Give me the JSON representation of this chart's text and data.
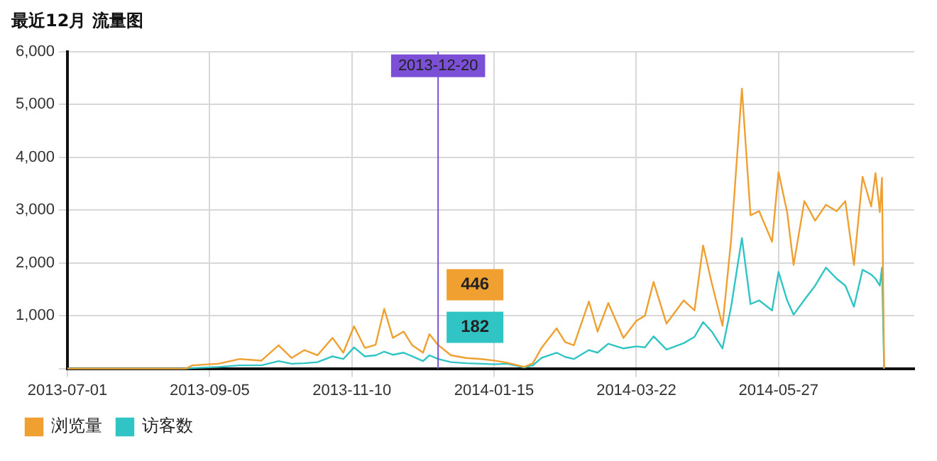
{
  "chart_data": {
    "type": "line",
    "title": "最近12月 流量图",
    "x": [
      "2013-07-01",
      "2013-08-25",
      "2013-08-28",
      "2013-09-09",
      "2013-09-19",
      "2013-09-29",
      "2013-10-07",
      "2013-10-13",
      "2013-10-19",
      "2013-10-25",
      "2013-11-01",
      "2013-11-06",
      "2013-11-11",
      "2013-11-16",
      "2013-11-21",
      "2013-11-25",
      "2013-11-29",
      "2013-12-04",
      "2013-12-08",
      "2013-12-13",
      "2013-12-16",
      "2013-12-20",
      "2013-12-26",
      "2014-01-02",
      "2014-01-09",
      "2014-01-15",
      "2014-01-21",
      "2014-01-29",
      "2014-02-02",
      "2014-02-06",
      "2014-02-13",
      "2014-02-17",
      "2014-02-21",
      "2014-02-28",
      "2014-03-04",
      "2014-03-09",
      "2014-03-16",
      "2014-03-22",
      "2014-03-26",
      "2014-03-30",
      "2014-04-05",
      "2014-04-13",
      "2014-04-18",
      "2014-04-22",
      "2014-04-26",
      "2014-05-01",
      "2014-05-05",
      "2014-05-10",
      "2014-05-14",
      "2014-05-18",
      "2014-05-24",
      "2014-05-27",
      "2014-05-31",
      "2014-06-03",
      "2014-06-08",
      "2014-06-13",
      "2014-06-18",
      "2014-06-23",
      "2014-06-27",
      "2014-07-01",
      "2014-07-05",
      "2014-07-09",
      "2014-07-11",
      "2014-07-13",
      "2014-07-14",
      "2014-07-15"
    ],
    "series": [
      {
        "name": "浏览量",
        "color": "#f0a030",
        "values": [
          0,
          0,
          60,
          90,
          180,
          150,
          440,
          200,
          350,
          250,
          580,
          300,
          800,
          390,
          450,
          1130,
          580,
          700,
          440,
          300,
          650,
          446,
          250,
          200,
          180,
          150,
          110,
          30,
          100,
          390,
          760,
          500,
          440,
          1270,
          700,
          1240,
          580,
          900,
          1000,
          1640,
          850,
          1290,
          1100,
          2330,
          1620,
          810,
          2440,
          5300,
          2900,
          2980,
          2400,
          3720,
          2960,
          1960,
          3170,
          2800,
          3100,
          2980,
          3170,
          1960,
          3630,
          3070,
          3700,
          2960,
          3610,
          0
        ]
      },
      {
        "name": "访客数",
        "color": "#30c4c4",
        "values": [
          0,
          0,
          10,
          30,
          60,
          60,
          140,
          90,
          100,
          120,
          230,
          180,
          400,
          230,
          250,
          320,
          260,
          300,
          230,
          140,
          250,
          182,
          120,
          100,
          90,
          80,
          90,
          20,
          60,
          200,
          300,
          220,
          180,
          350,
          300,
          470,
          380,
          420,
          400,
          610,
          360,
          480,
          600,
          880,
          700,
          380,
          1170,
          2470,
          1220,
          1290,
          1100,
          1830,
          1290,
          1020,
          1300,
          1570,
          1910,
          1700,
          1570,
          1170,
          1870,
          1780,
          1700,
          1570,
          1910,
          0
        ]
      }
    ],
    "xlim": [
      "2013-07-01",
      "2014-07-29"
    ],
    "xticks": [
      "2013-07-01",
      "2013-09-05",
      "2013-11-10",
      "2014-01-15",
      "2014-03-22",
      "2014-05-27"
    ],
    "ylim": [
      0,
      6000
    ],
    "yticks": [
      {
        "value": 0,
        "label": null
      },
      {
        "value": 1000,
        "label": "1,000"
      },
      {
        "value": 2000,
        "label": "2,000"
      },
      {
        "value": 3000,
        "label": "3,000"
      },
      {
        "value": 4000,
        "label": "4,000"
      },
      {
        "value": 5000,
        "label": "5,000"
      },
      {
        "value": 6000,
        "label": "6,000"
      }
    ],
    "ref_lines": [
      {
        "axis": "x",
        "value": "2013-12-20",
        "label": "2013-12-20",
        "color": "#7b4fd6"
      }
    ],
    "annotations": [
      "446",
      "182"
    ],
    "grid": true,
    "legend": "bottom",
    "marker": "none",
    "line_style": "solid"
  }
}
